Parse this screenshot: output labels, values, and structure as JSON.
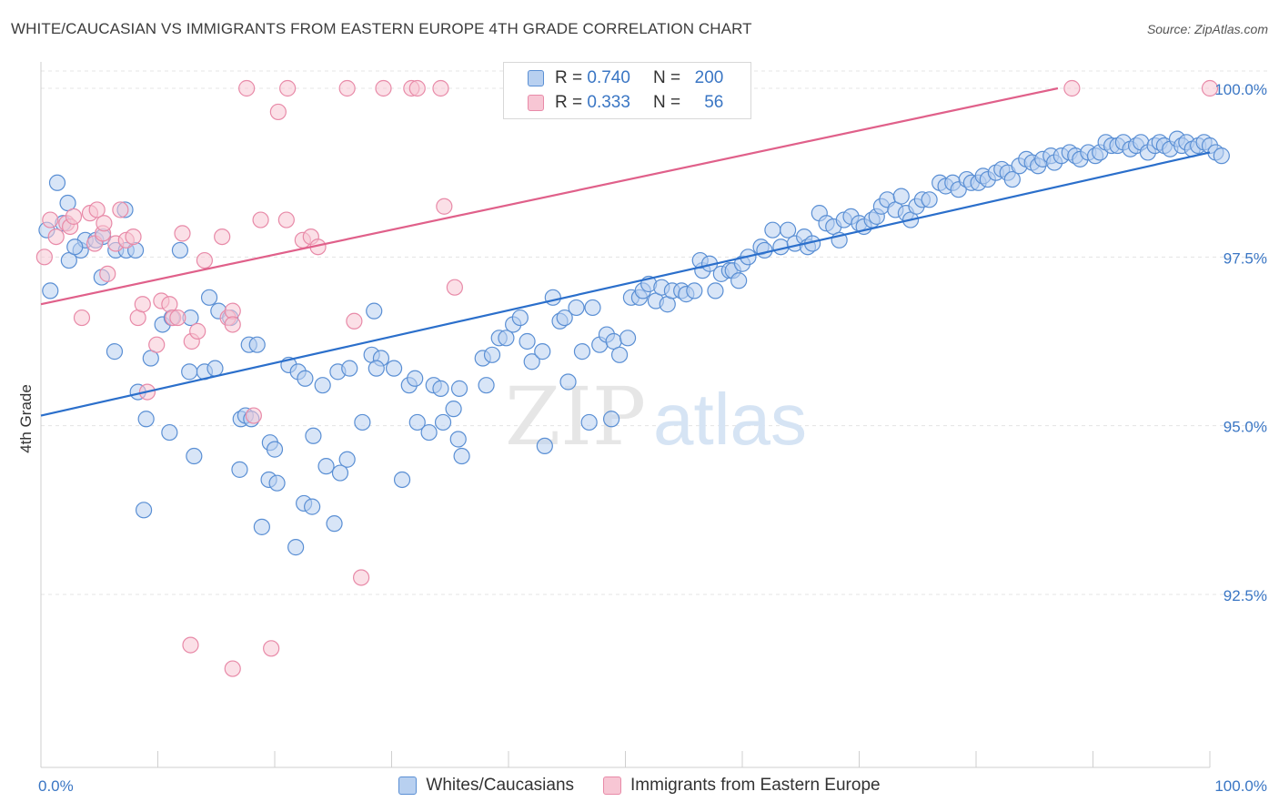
{
  "title": "WHITE/CAUCASIAN VS IMMIGRANTS FROM EASTERN EUROPE 4TH GRADE CORRELATION CHART",
  "source": "Source: ZipAtlas.com",
  "watermark": {
    "part1": "ZIP",
    "part2": "atlas"
  },
  "legend": {
    "rows": [
      {
        "r_label": "R =",
        "r_value": "0.740",
        "n_label": "N =",
        "n_value": "200"
      },
      {
        "r_label": "R =",
        "r_value": "0.333",
        "n_label": "N =",
        "n_value": "56"
      }
    ]
  },
  "bottom_legend": [
    "Whites/Caucasians",
    "Immigrants from Eastern Europe"
  ],
  "colors": {
    "blue_fill": "#b8d0f0",
    "blue_stroke": "#5a8fd4",
    "blue_line": "#2b6fcb",
    "pink_fill": "#f7c6d4",
    "pink_stroke": "#e88aa8",
    "pink_line": "#e0608a",
    "tick_label": "#3a76c4",
    "grid": "#e4e4e4"
  },
  "chart_data": {
    "type": "scatter",
    "title": "WHITE/CAUCASIAN VS IMMIGRANTS FROM EASTERN EUROPE 4TH GRADE CORRELATION CHART",
    "xlabel": "",
    "ylabel": "4th Grade",
    "xlim": [
      0,
      100
    ],
    "ylim": [
      90.0,
      100.4
    ],
    "x_tick_labels": [
      "0.0%",
      "100.0%"
    ],
    "y_ticks": [
      92.5,
      95.0,
      97.5,
      100.0
    ],
    "y_tick_labels": [
      "92.5%",
      "95.0%",
      "97.5%",
      "100.0%"
    ],
    "grid": true,
    "legend_position": "top-center",
    "series": [
      {
        "name": "Whites/Caucasians",
        "R": 0.74,
        "N": 200,
        "trend": {
          "x": [
            0,
            100
          ],
          "y": [
            95.15,
            99.05
          ]
        },
        "points": [
          [
            0.5,
            97.9
          ],
          [
            1.4,
            98.6
          ],
          [
            1.9,
            98.0
          ],
          [
            2.3,
            98.3
          ],
          [
            0.8,
            97.0
          ],
          [
            2.4,
            97.45
          ],
          [
            3.4,
            97.6
          ],
          [
            3.8,
            97.75
          ],
          [
            2.9,
            97.65
          ],
          [
            4.7,
            97.75
          ],
          [
            5.3,
            97.8
          ],
          [
            6.4,
            97.6
          ],
          [
            5.2,
            97.2
          ],
          [
            7.2,
            98.2
          ],
          [
            7.3,
            97.6
          ],
          [
            8.1,
            97.6
          ],
          [
            11.9,
            97.6
          ],
          [
            10.4,
            96.5
          ],
          [
            6.3,
            96.1
          ],
          [
            9.4,
            96.0
          ],
          [
            11.2,
            96.6
          ],
          [
            12.8,
            96.6
          ],
          [
            14.4,
            96.9
          ],
          [
            15.2,
            96.7
          ],
          [
            16.2,
            96.6
          ],
          [
            8.3,
            95.5
          ],
          [
            12.7,
            95.8
          ],
          [
            14.0,
            95.8
          ],
          [
            14.9,
            95.85
          ],
          [
            17.1,
            95.1
          ],
          [
            17.5,
            95.15
          ],
          [
            18.0,
            95.1
          ],
          [
            17.8,
            96.2
          ],
          [
            18.5,
            96.2
          ],
          [
            21.2,
            95.9
          ],
          [
            22.0,
            95.8
          ],
          [
            22.6,
            95.7
          ],
          [
            24.1,
            95.6
          ],
          [
            25.4,
            95.8
          ],
          [
            26.4,
            95.85
          ],
          [
            28.5,
            96.7
          ],
          [
            28.3,
            96.05
          ],
          [
            29.1,
            96.0
          ],
          [
            28.7,
            95.85
          ],
          [
            30.2,
            95.85
          ],
          [
            31.5,
            95.6
          ],
          [
            32.0,
            95.7
          ],
          [
            33.6,
            95.6
          ],
          [
            34.2,
            95.55
          ],
          [
            35.3,
            95.25
          ],
          [
            35.8,
            95.55
          ],
          [
            32.2,
            95.05
          ],
          [
            33.2,
            94.9
          ],
          [
            34.4,
            95.05
          ],
          [
            35.7,
            94.8
          ],
          [
            36.0,
            94.55
          ],
          [
            27.5,
            95.05
          ],
          [
            9.0,
            95.1
          ],
          [
            11.0,
            94.9
          ],
          [
            13.1,
            94.55
          ],
          [
            17.0,
            94.35
          ],
          [
            19.6,
            94.75
          ],
          [
            20.0,
            94.65
          ],
          [
            23.3,
            94.85
          ],
          [
            24.4,
            94.4
          ],
          [
            26.2,
            94.5
          ],
          [
            25.6,
            94.3
          ],
          [
            30.9,
            94.2
          ],
          [
            19.5,
            94.2
          ],
          [
            20.2,
            94.15
          ],
          [
            22.5,
            93.85
          ],
          [
            23.2,
            93.8
          ],
          [
            21.8,
            93.2
          ],
          [
            18.9,
            93.5
          ],
          [
            25.1,
            93.55
          ],
          [
            8.8,
            93.75
          ],
          [
            37.8,
            96.0
          ],
          [
            38.1,
            95.6
          ],
          [
            38.6,
            96.05
          ],
          [
            39.2,
            96.3
          ],
          [
            39.8,
            96.3
          ],
          [
            40.4,
            96.5
          ],
          [
            41.0,
            96.6
          ],
          [
            41.6,
            96.25
          ],
          [
            42.0,
            95.95
          ],
          [
            42.9,
            96.1
          ],
          [
            43.8,
            96.9
          ],
          [
            44.4,
            96.55
          ],
          [
            44.8,
            96.6
          ],
          [
            45.1,
            95.65
          ],
          [
            45.8,
            96.75
          ],
          [
            46.3,
            96.1
          ],
          [
            47.2,
            96.75
          ],
          [
            47.8,
            96.2
          ],
          [
            48.4,
            96.35
          ],
          [
            49.0,
            96.25
          ],
          [
            49.5,
            96.05
          ],
          [
            50.2,
            96.3
          ],
          [
            48.8,
            95.1
          ],
          [
            43.1,
            94.7
          ],
          [
            46.9,
            95.05
          ],
          [
            50.5,
            96.9
          ],
          [
            51.2,
            96.9
          ],
          [
            51.5,
            97.0
          ],
          [
            52.0,
            97.1
          ],
          [
            52.6,
            96.85
          ],
          [
            53.1,
            97.05
          ],
          [
            53.6,
            96.8
          ],
          [
            54.0,
            97.0
          ],
          [
            54.8,
            97.0
          ],
          [
            55.2,
            96.95
          ],
          [
            55.9,
            97.0
          ],
          [
            56.6,
            97.3
          ],
          [
            56.4,
            97.45
          ],
          [
            57.2,
            97.4
          ],
          [
            57.7,
            97.0
          ],
          [
            58.2,
            97.25
          ],
          [
            58.9,
            97.3
          ],
          [
            59.2,
            97.3
          ],
          [
            59.7,
            97.15
          ],
          [
            60.0,
            97.4
          ],
          [
            60.5,
            97.5
          ],
          [
            61.6,
            97.65
          ],
          [
            61.9,
            97.6
          ],
          [
            62.6,
            97.9
          ],
          [
            63.3,
            97.65
          ],
          [
            63.9,
            97.9
          ],
          [
            64.5,
            97.7
          ],
          [
            65.3,
            97.8
          ],
          [
            65.6,
            97.65
          ],
          [
            66.0,
            97.7
          ],
          [
            66.6,
            98.15
          ],
          [
            67.2,
            98.0
          ],
          [
            67.8,
            97.95
          ],
          [
            68.3,
            97.75
          ],
          [
            68.7,
            98.05
          ],
          [
            69.3,
            98.1
          ],
          [
            70.0,
            98.0
          ],
          [
            70.4,
            97.95
          ],
          [
            71.1,
            98.05
          ],
          [
            71.5,
            98.1
          ],
          [
            71.9,
            98.25
          ],
          [
            72.4,
            98.35
          ],
          [
            73.1,
            98.2
          ],
          [
            73.6,
            98.4
          ],
          [
            74.0,
            98.15
          ],
          [
            74.4,
            98.05
          ],
          [
            74.9,
            98.25
          ],
          [
            75.4,
            98.35
          ],
          [
            76.0,
            98.35
          ],
          [
            76.9,
            98.6
          ],
          [
            77.4,
            98.55
          ],
          [
            78.0,
            98.6
          ],
          [
            78.5,
            98.5
          ],
          [
            79.2,
            98.65
          ],
          [
            79.6,
            98.6
          ],
          [
            80.2,
            98.6
          ],
          [
            80.6,
            98.7
          ],
          [
            81.0,
            98.65
          ],
          [
            81.7,
            98.75
          ],
          [
            82.2,
            98.8
          ],
          [
            82.7,
            98.75
          ],
          [
            83.1,
            98.65
          ],
          [
            83.7,
            98.85
          ],
          [
            84.3,
            98.95
          ],
          [
            84.8,
            98.9
          ],
          [
            85.3,
            98.85
          ],
          [
            85.7,
            98.95
          ],
          [
            86.4,
            99.0
          ],
          [
            86.7,
            98.9
          ],
          [
            87.3,
            99.0
          ],
          [
            88.0,
            99.05
          ],
          [
            88.5,
            99.0
          ],
          [
            88.9,
            98.95
          ],
          [
            89.6,
            99.05
          ],
          [
            90.2,
            99.0
          ],
          [
            90.6,
            99.05
          ],
          [
            91.1,
            99.2
          ],
          [
            91.6,
            99.15
          ],
          [
            92.1,
            99.15
          ],
          [
            92.6,
            99.2
          ],
          [
            93.2,
            99.1
          ],
          [
            93.7,
            99.15
          ],
          [
            94.1,
            99.2
          ],
          [
            94.7,
            99.05
          ],
          [
            95.3,
            99.15
          ],
          [
            95.7,
            99.2
          ],
          [
            96.1,
            99.15
          ],
          [
            96.6,
            99.1
          ],
          [
            97.2,
            99.25
          ],
          [
            97.6,
            99.15
          ],
          [
            98.0,
            99.2
          ],
          [
            98.5,
            99.1
          ],
          [
            99.0,
            99.15
          ],
          [
            99.5,
            99.2
          ],
          [
            100.0,
            99.15
          ],
          [
            100.5,
            99.05
          ],
          [
            101.0,
            99.0
          ]
        ]
      },
      {
        "name": "Immigrants from Eastern Europe",
        "R": 0.333,
        "N": 56,
        "trend": {
          "x": [
            0,
            87
          ],
          "y": [
            96.8,
            100.0
          ]
        },
        "points": [
          [
            0.3,
            97.5
          ],
          [
            0.8,
            98.05
          ],
          [
            1.3,
            97.8
          ],
          [
            2.2,
            98.0
          ],
          [
            2.5,
            97.95
          ],
          [
            2.8,
            98.1
          ],
          [
            3.5,
            96.6
          ],
          [
            4.2,
            98.15
          ],
          [
            4.6,
            97.7
          ],
          [
            4.8,
            98.2
          ],
          [
            5.3,
            97.85
          ],
          [
            5.4,
            98.0
          ],
          [
            5.7,
            97.25
          ],
          [
            6.4,
            97.7
          ],
          [
            6.8,
            98.2
          ],
          [
            7.3,
            97.75
          ],
          [
            7.9,
            97.8
          ],
          [
            8.3,
            96.6
          ],
          [
            8.7,
            96.8
          ],
          [
            9.1,
            95.5
          ],
          [
            9.9,
            96.2
          ],
          [
            10.3,
            96.85
          ],
          [
            11.0,
            96.8
          ],
          [
            11.3,
            96.6
          ],
          [
            11.7,
            96.6
          ],
          [
            12.1,
            97.85
          ],
          [
            12.9,
            96.25
          ],
          [
            13.4,
            96.4
          ],
          [
            14.0,
            97.45
          ],
          [
            15.5,
            97.8
          ],
          [
            16.0,
            96.6
          ],
          [
            16.4,
            96.7
          ],
          [
            16.4,
            96.5
          ],
          [
            18.2,
            95.15
          ],
          [
            18.8,
            98.05
          ],
          [
            20.3,
            99.65
          ],
          [
            21.0,
            98.05
          ],
          [
            22.4,
            97.75
          ],
          [
            23.1,
            97.8
          ],
          [
            23.7,
            97.65
          ],
          [
            26.8,
            96.55
          ],
          [
            27.4,
            92.75
          ],
          [
            34.5,
            98.25
          ],
          [
            35.4,
            97.05
          ],
          [
            12.8,
            91.75
          ],
          [
            16.4,
            91.4
          ],
          [
            19.7,
            91.7
          ],
          [
            17.6,
            100.0
          ],
          [
            21.1,
            100.0
          ],
          [
            26.2,
            100.0
          ],
          [
            29.3,
            100.0
          ],
          [
            31.7,
            100.0
          ],
          [
            32.2,
            100.0
          ],
          [
            34.2,
            100.0
          ],
          [
            88.2,
            100.0
          ],
          [
            100.0,
            100.0
          ]
        ]
      }
    ]
  }
}
